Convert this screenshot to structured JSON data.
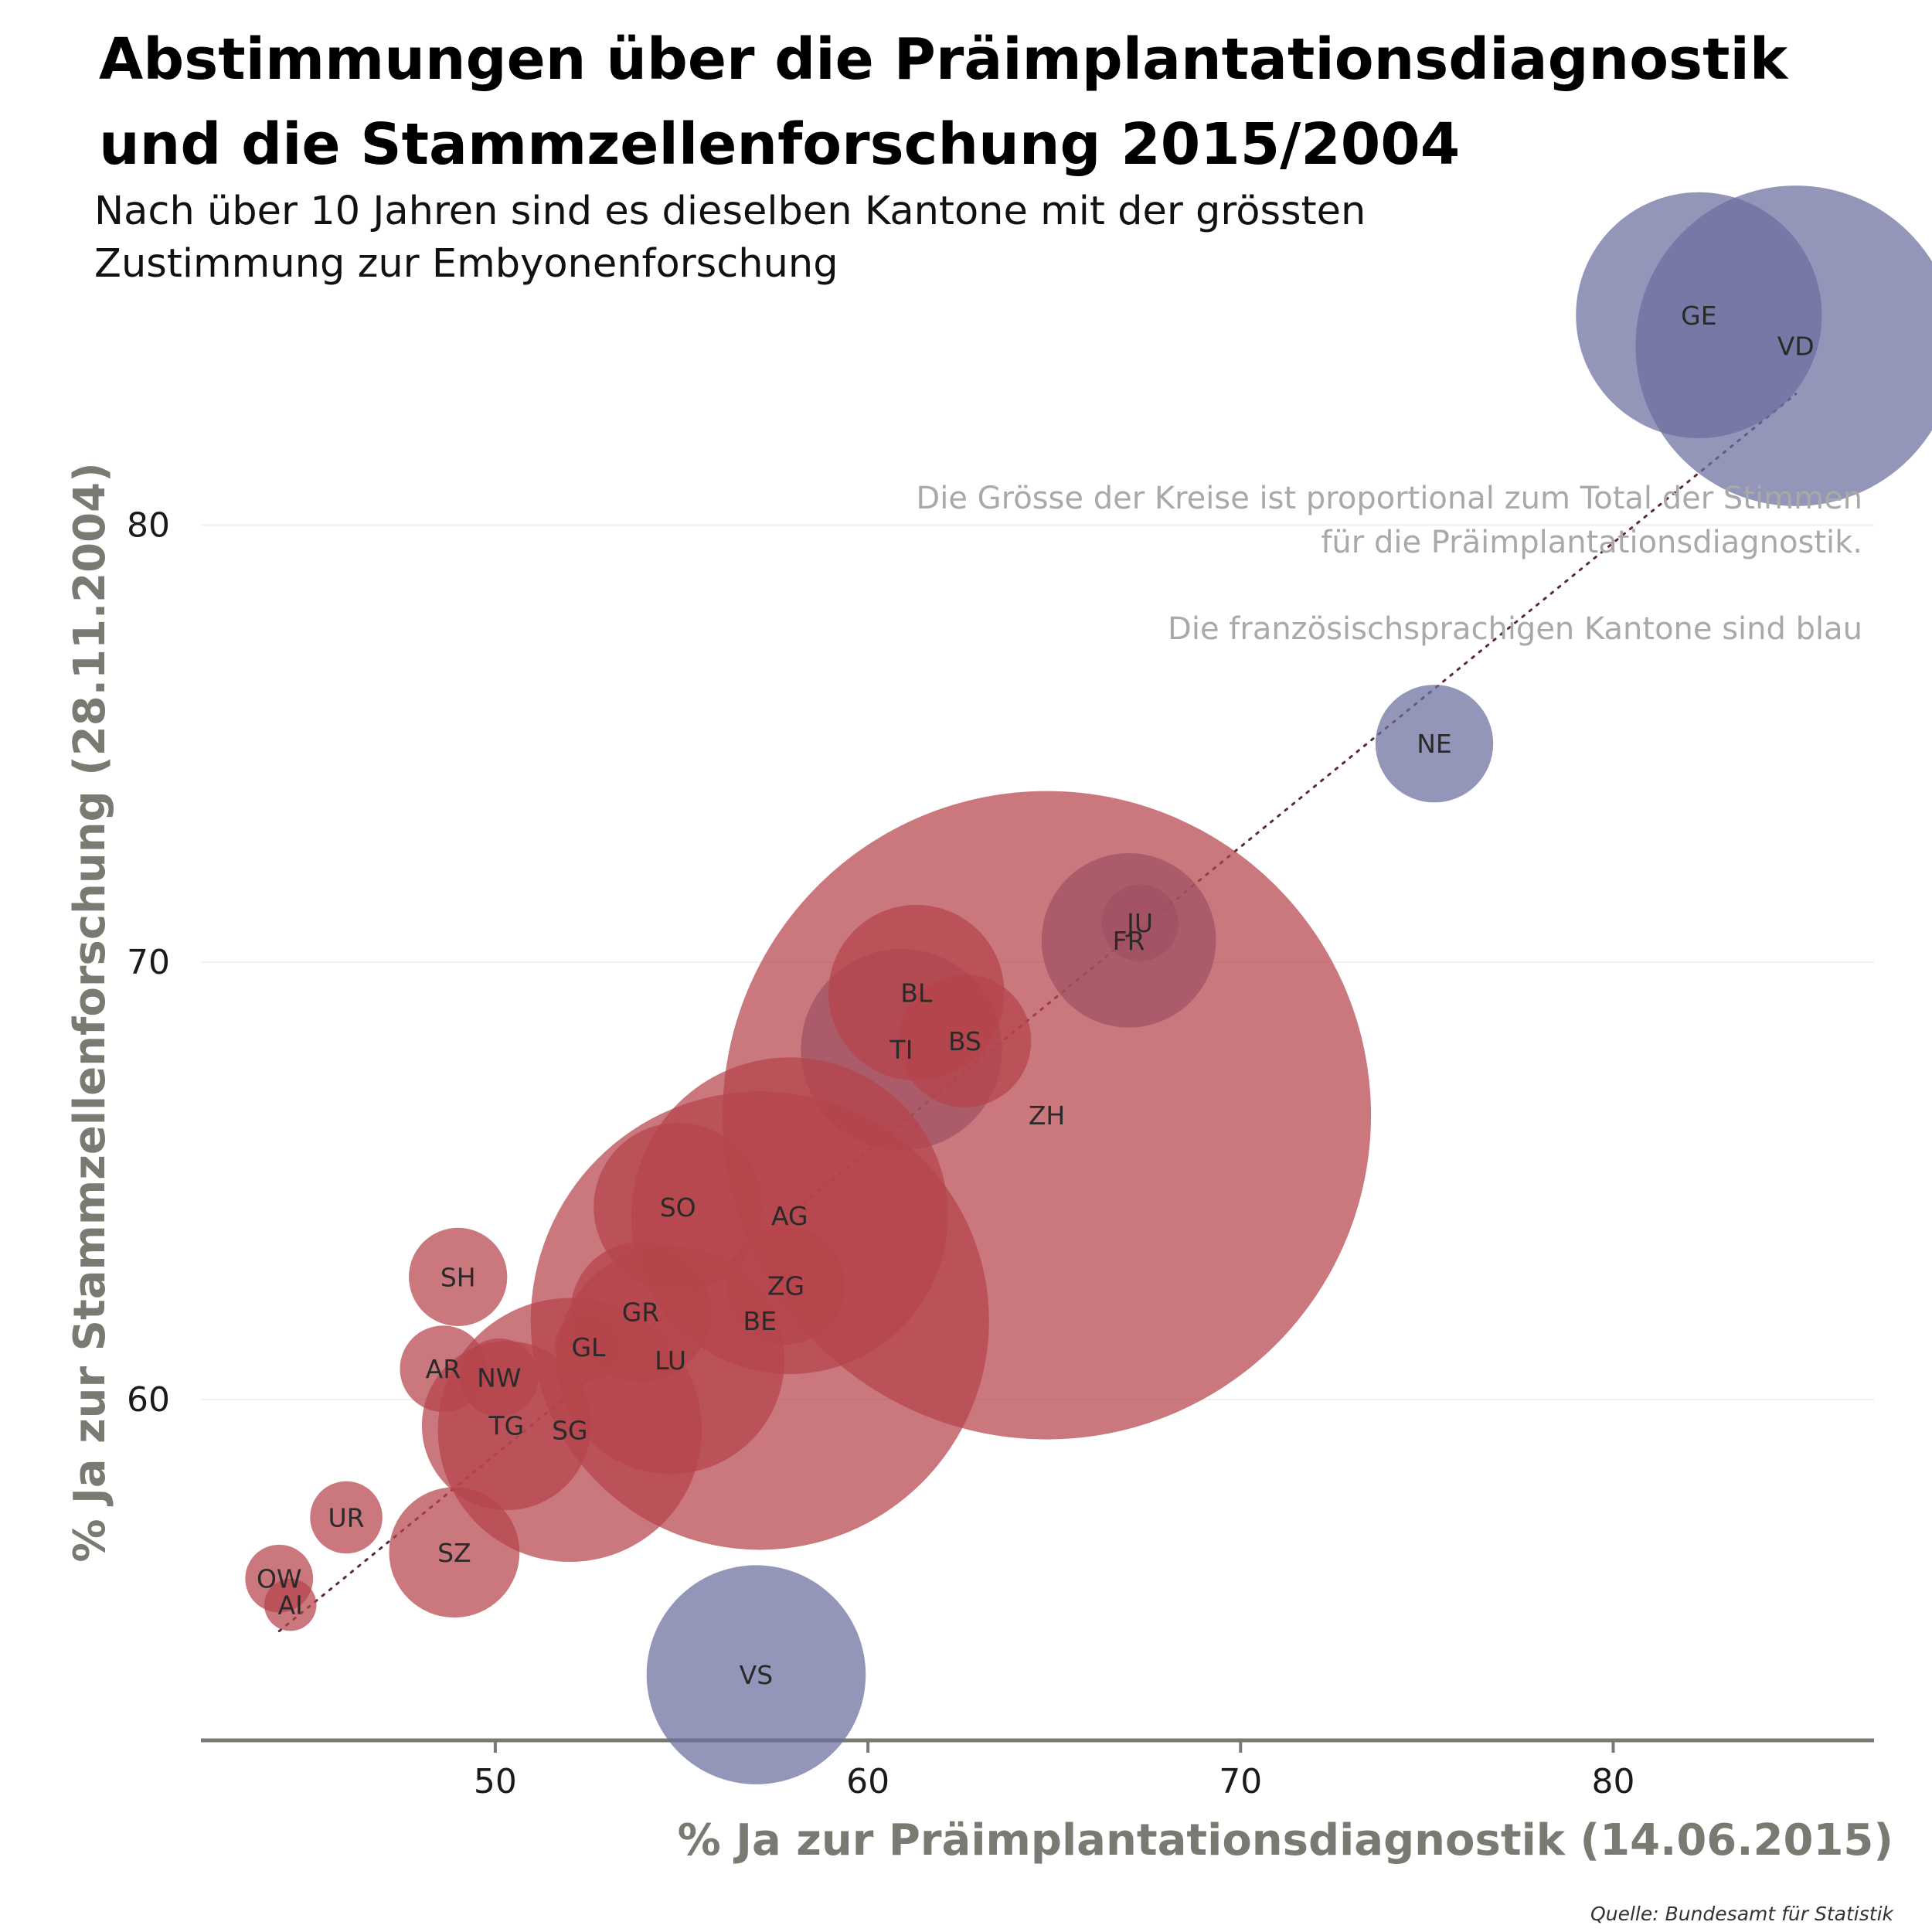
{
  "chart_data": {
    "type": "scatter",
    "title": "Abstimmungen über die Präimplantationsdiagnostik und die Stammzellenforschung 2015/2004",
    "subtitle_lines": [
      "Nach über 10 Jahren sind es dieselben Kantone mit der grössten",
      "Zustimmung zur Embyonenforschung"
    ],
    "xlabel": "% Ja zur Präimplantationsdiagnostik (14.06.2015)",
    "ylabel": "% Ja zur Stammzellenforschung (28.11.2004)",
    "xlim": [
      42.1,
      87.0
    ],
    "ylim": [
      52.2,
      86.0
    ],
    "x_ticks": [
      50,
      60,
      70,
      80
    ],
    "y_ticks": [
      60,
      70,
      80
    ],
    "grid": "horizontal",
    "notes": [
      "Die Grösse der Kreise ist proportional zum Total der Stimmen",
      "für die Präimplantationsdiagnostik.",
      "Die französischsprachigen Kantone sind blau"
    ],
    "source": "Quelle: Bundesamt für Statistik",
    "colors": {
      "french": "#6b6d9e",
      "other": "#b5444b",
      "trend": "#5a2a3a"
    },
    "trendline": {
      "x": [
        44.2,
        84.9
      ],
      "y": [
        54.7,
        83.0
      ]
    },
    "points": [
      {
        "label": "GE",
        "x": 82.3,
        "y": 84.8,
        "size": 33.0,
        "french": true
      },
      {
        "label": "VD",
        "x": 84.9,
        "y": 84.1,
        "size": 43.0,
        "french": true
      },
      {
        "label": "NE",
        "x": 75.2,
        "y": 75.0,
        "size": 15.8,
        "french": true
      },
      {
        "label": "JU",
        "x": 67.3,
        "y": 70.9,
        "size": 10.3,
        "french": true
      },
      {
        "label": "FR",
        "x": 67.0,
        "y": 70.5,
        "size": 23.4,
        "french": true
      },
      {
        "label": "TI",
        "x": 60.9,
        "y": 68.0,
        "size": 27.0,
        "french": true
      },
      {
        "label": "VS",
        "x": 57.0,
        "y": 53.7,
        "size": 29.4,
        "french": true
      },
      {
        "label": "BL",
        "x": 61.3,
        "y": 69.3,
        "size": 23.6,
        "french": false
      },
      {
        "label": "BS",
        "x": 62.6,
        "y": 68.2,
        "size": 17.8,
        "french": false
      },
      {
        "label": "ZH",
        "x": 64.8,
        "y": 66.5,
        "size": 87.0,
        "french": false
      },
      {
        "label": "AG",
        "x": 57.9,
        "y": 64.2,
        "size": 42.5,
        "french": false
      },
      {
        "label": "ZG",
        "x": 57.8,
        "y": 62.6,
        "size": 15.8,
        "french": false
      },
      {
        "label": "BE",
        "x": 57.1,
        "y": 61.8,
        "size": 61.5,
        "french": false
      },
      {
        "label": "SO",
        "x": 54.9,
        "y": 64.4,
        "size": 22.6,
        "french": false
      },
      {
        "label": "GR",
        "x": 53.9,
        "y": 62.0,
        "size": 18.8,
        "french": false
      },
      {
        "label": "LU",
        "x": 54.7,
        "y": 60.9,
        "size": 30.6,
        "french": false
      },
      {
        "label": "GL",
        "x": 52.5,
        "y": 61.2,
        "size": 9.0,
        "french": false
      },
      {
        "label": "SH",
        "x": 49.0,
        "y": 62.8,
        "size": 13.2,
        "french": false
      },
      {
        "label": "AR",
        "x": 48.6,
        "y": 60.7,
        "size": 11.6,
        "french": false
      },
      {
        "label": "NW",
        "x": 50.1,
        "y": 60.5,
        "size": 10.5,
        "french": false
      },
      {
        "label": "TG",
        "x": 50.3,
        "y": 59.4,
        "size": 22.7,
        "french": false
      },
      {
        "label": "SG",
        "x": 52.0,
        "y": 59.3,
        "size": 35.4,
        "french": false
      },
      {
        "label": "UR",
        "x": 46.0,
        "y": 57.3,
        "size": 9.7,
        "french": false
      },
      {
        "label": "SZ",
        "x": 48.9,
        "y": 56.5,
        "size": 17.5,
        "french": false
      },
      {
        "label": "OW",
        "x": 44.2,
        "y": 55.9,
        "size": 9.1,
        "french": false
      },
      {
        "label": "AI",
        "x": 44.5,
        "y": 55.3,
        "size": 7.0,
        "french": false
      }
    ]
  }
}
